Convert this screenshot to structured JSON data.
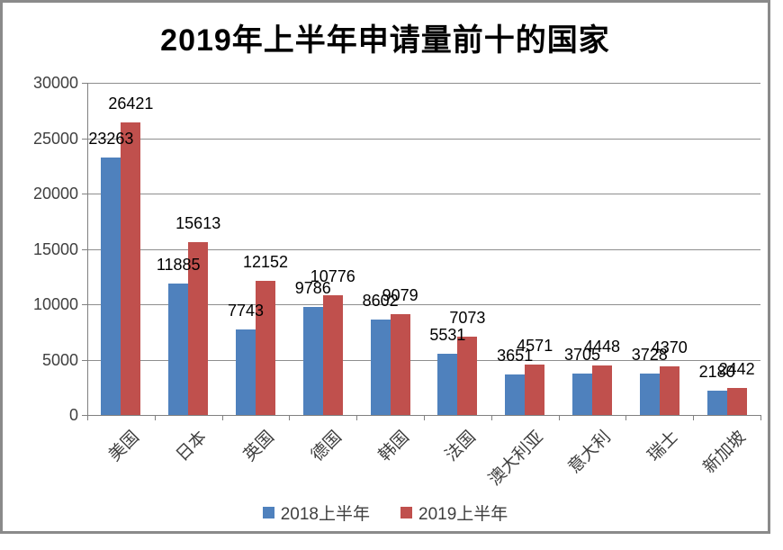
{
  "chart_data": {
    "type": "bar",
    "title": "2019年上半年申请量前十的国家",
    "categories": [
      "美国",
      "日本",
      "英国",
      "德国",
      "韩国",
      "法国",
      "澳大利亚",
      "意大利",
      "瑞士",
      "新加坡"
    ],
    "series": [
      {
        "name": "2018上半年",
        "color": "#4F81BD",
        "values": [
          23263,
          11885,
          7743,
          9786,
          8602,
          5531,
          3651,
          3705,
          3728,
          2180
        ]
      },
      {
        "name": "2019上半年",
        "color": "#C0504D",
        "values": [
          26421,
          15613,
          12152,
          10776,
          9079,
          7073,
          4571,
          4448,
          4370,
          2442
        ]
      }
    ],
    "xlabel": "",
    "ylabel": "",
    "ylim": [
      0,
      30000
    ],
    "yticks": [
      0,
      5000,
      10000,
      15000,
      20000,
      25000,
      30000
    ],
    "grid": true,
    "data_labels": true,
    "legend_position": "bottom",
    "colors": {
      "gridline": "#8e8e8e",
      "axis": "#808080",
      "frame_border": "#8a8a8a",
      "title_text": "#000000",
      "tick_text": "#3f3f3f",
      "data_label_text": "#000000"
    }
  }
}
